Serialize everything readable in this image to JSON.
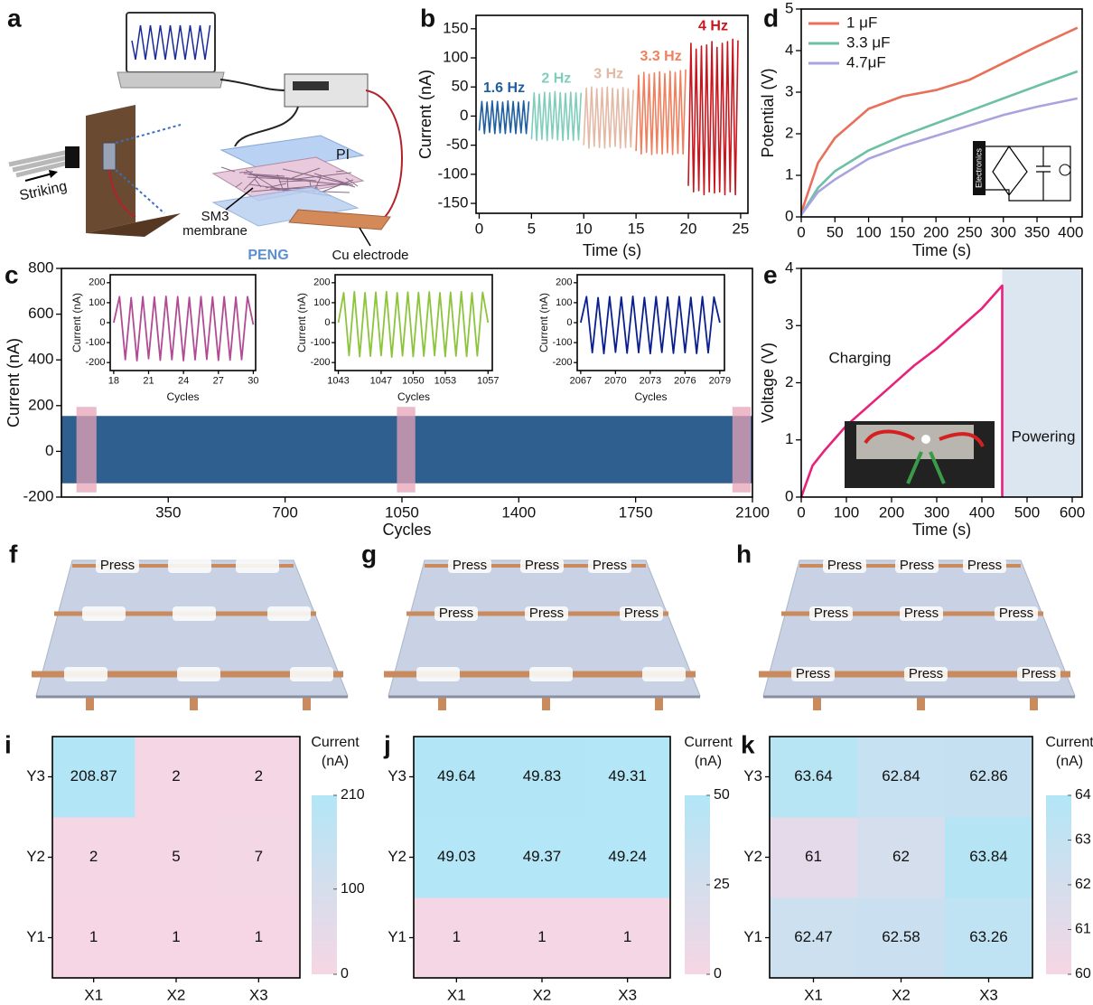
{
  "schematic": {
    "panel": "a",
    "striking": "Striking",
    "pi": "PI",
    "membrane": [
      "SM3",
      "membrane"
    ],
    "peng": "PENG",
    "electrode": "Cu electrode"
  },
  "chart_data": [
    {
      "panel": "b",
      "type": "line",
      "xlabel": "Time (s)",
      "ylabel": "Current (nA)",
      "xlim": [
        -0.3,
        25.7
      ],
      "ylim": [
        -167,
        173
      ],
      "xticks": [
        0,
        5,
        10,
        15,
        20,
        25
      ],
      "yticks": [
        -150,
        -100,
        -50,
        0,
        50,
        100,
        150
      ],
      "legend": "inline",
      "series": [
        {
          "name": "1.6 Hz",
          "color": "#1f5fa0",
          "x": [
            0,
            0.25,
            0.5,
            0.75,
            1,
            1.25,
            1.5,
            1.75,
            2,
            2.25,
            2.5,
            2.75,
            3,
            3.25,
            3.5,
            3.75,
            4,
            4.25,
            4.5,
            4.75
          ],
          "values": [
            -25,
            25,
            -30,
            24,
            -28,
            26,
            -30,
            25,
            -29,
            24,
            -30,
            26,
            -28,
            25,
            -30,
            24,
            -29,
            26,
            -30,
            25
          ]
        },
        {
          "name": "2 Hz",
          "color": "#7fcdbb",
          "x": [
            5,
            5.25,
            5.5,
            5.75,
            6,
            6.25,
            6.5,
            6.75,
            7,
            7.25,
            7.5,
            7.75,
            8,
            8.25,
            8.5,
            8.75,
            9,
            9.25,
            9.5,
            9.75
          ],
          "values": [
            -40,
            40,
            -42,
            38,
            -40,
            41,
            -42,
            40,
            -39,
            42,
            -41,
            40,
            -42,
            39,
            -40,
            41,
            -42,
            40,
            -41,
            40
          ]
        },
        {
          "name": "3 Hz",
          "color": "#e3b9a6",
          "x": [
            10,
            10.25,
            10.5,
            10.75,
            11,
            11.25,
            11.5,
            11.75,
            12,
            12.25,
            12.5,
            12.75,
            13,
            13.25,
            13.5,
            13.75,
            14,
            14.25,
            14.5,
            14.75
          ],
          "values": [
            -50,
            48,
            -55,
            50,
            -52,
            47,
            -54,
            49,
            -55,
            50,
            -53,
            48,
            -52,
            46,
            -55,
            49,
            -54,
            47,
            -53,
            45
          ]
        },
        {
          "name": "3.3 Hz",
          "color": "#f07f5e",
          "x": [
            15,
            15.25,
            15.5,
            15.75,
            16,
            16.25,
            16.5,
            16.75,
            17,
            17.25,
            17.5,
            17.75,
            18,
            18.25,
            18.5,
            18.75,
            19,
            19.25,
            19.5,
            19.75
          ],
          "values": [
            -60,
            70,
            -65,
            75,
            -62,
            72,
            -66,
            74,
            -64,
            76,
            -65,
            73,
            -63,
            77,
            -66,
            75,
            -64,
            78,
            -65,
            80
          ]
        },
        {
          "name": "4 Hz",
          "color": "#c8161e",
          "x": [
            20,
            20.25,
            20.5,
            20.75,
            21,
            21.25,
            21.5,
            21.75,
            22,
            22.25,
            22.5,
            22.75,
            23,
            23.25,
            23.5,
            23.75,
            24,
            24.25,
            24.5,
            24.75
          ],
          "values": [
            -120,
            125,
            -130,
            115,
            -128,
            120,
            -135,
            122,
            -130,
            128,
            -132,
            118,
            -130,
            125,
            -135,
            128,
            -130,
            132,
            -135,
            130
          ]
        }
      ]
    },
    {
      "panel": "d",
      "type": "line",
      "xlabel": "Time (s)",
      "ylabel": "Potential (V)",
      "xlim": [
        0,
        417
      ],
      "ylim": [
        0,
        5
      ],
      "xticks": [
        0,
        50,
        100,
        150,
        200,
        250,
        300,
        350,
        400
      ],
      "yticks": [
        0,
        1,
        2,
        3,
        4,
        5
      ],
      "legend": "upper left",
      "inset_label": "Electronics",
      "series": [
        {
          "name": "1 μF",
          "color": "#e8705a",
          "x": [
            0,
            25,
            50,
            100,
            150,
            200,
            250,
            300,
            350,
            410
          ],
          "values": [
            0.1,
            1.3,
            1.9,
            2.6,
            2.9,
            3.05,
            3.3,
            3.7,
            4.1,
            4.55
          ]
        },
        {
          "name": "3.3 μF",
          "color": "#6cc0a4",
          "x": [
            0,
            25,
            50,
            100,
            150,
            200,
            250,
            300,
            350,
            410
          ],
          "values": [
            0.05,
            0.7,
            1.1,
            1.6,
            1.95,
            2.25,
            2.55,
            2.85,
            3.15,
            3.5
          ]
        },
        {
          "name": "4.7μF",
          "color": "#a9a4e0",
          "x": [
            0,
            25,
            50,
            100,
            150,
            200,
            250,
            300,
            350,
            410
          ],
          "values": [
            0.05,
            0.6,
            0.9,
            1.4,
            1.7,
            1.95,
            2.2,
            2.45,
            2.65,
            2.85
          ]
        }
      ]
    },
    {
      "panel": "c",
      "type": "band",
      "xlabel": "Cycles",
      "ylabel": "Current (nA)",
      "xlim": [
        30,
        2100
      ],
      "ylim": [
        -200,
        800
      ],
      "xticks": [
        350,
        700,
        1050,
        1400,
        1750,
        2100
      ],
      "yticks": [
        -200,
        0,
        200,
        400,
        600,
        800
      ],
      "color": "#2e5f8e",
      "x": [
        30,
        2100
      ],
      "upper": [
        155,
        155
      ],
      "lower": [
        -140,
        -140
      ],
      "highlights": [
        [
          75,
          135
        ],
        [
          1035,
          1090
        ],
        [
          2040,
          2095
        ]
      ],
      "highlight_color": "#e7a3b7"
    },
    {
      "type": "line",
      "xlabel": "Cycles",
      "ylabel": "Current (nA)",
      "xlim": [
        17.7,
        30.2
      ],
      "ylim": [
        -240,
        240
      ],
      "xticks": [
        18,
        21,
        24,
        27,
        30
      ],
      "yticks": [
        -200,
        -100,
        0,
        100,
        200
      ],
      "series": [
        {
          "color": "#b04b94",
          "x": [
            18,
            18.5,
            19,
            19.5,
            20,
            20.5,
            21,
            21.5,
            22,
            22.5,
            23,
            23.5,
            24,
            24.5,
            25,
            25.5,
            26,
            26.5,
            27,
            27.5,
            28,
            28.5,
            29,
            29.5,
            30
          ],
          "values": [
            0,
            130,
            -185,
            125,
            -190,
            130,
            -180,
            128,
            -188,
            132,
            -185,
            130,
            -190,
            127,
            -186,
            131,
            -184,
            129,
            -189,
            130,
            -187,
            128,
            -185,
            130,
            -10
          ]
        }
      ]
    },
    {
      "type": "line",
      "xlabel": "Cycles",
      "ylabel": "Current (nA)",
      "xlim": [
        1042.7,
        1057.4
      ],
      "ylim": [
        -240,
        240
      ],
      "xticks": [
        1043,
        1047,
        1050,
        1053,
        1057
      ],
      "yticks": [
        -200,
        -100,
        0,
        100,
        200
      ],
      "series": [
        {
          "color": "#8cc43c",
          "x": [
            1043,
            1043.5,
            1044,
            1044.5,
            1045,
            1045.5,
            1046,
            1046.5,
            1047,
            1047.5,
            1048,
            1048.5,
            1049,
            1049.5,
            1050,
            1050.5,
            1051,
            1051.5,
            1052,
            1052.5,
            1053,
            1053.5,
            1054,
            1054.5,
            1055,
            1055.5,
            1056,
            1056.5,
            1057
          ],
          "values": [
            0,
            150,
            -165,
            155,
            -170,
            150,
            -168,
            152,
            -165,
            155,
            -172,
            150,
            -166,
            153,
            -170,
            151,
            -168,
            154,
            -165,
            150,
            -170,
            152,
            -167,
            155,
            -169,
            150,
            -166,
            152,
            0
          ]
        }
      ]
    },
    {
      "type": "line",
      "xlabel": "Cycles",
      "ylabel": "Current (nA)",
      "xlim": [
        2066.7,
        2079.4
      ],
      "ylim": [
        -240,
        240
      ],
      "xticks": [
        2067,
        2070,
        2073,
        2076,
        2079
      ],
      "yticks": [
        -200,
        -100,
        0,
        100,
        200
      ],
      "series": [
        {
          "color": "#0a1f8f",
          "x": [
            2067,
            2067.5,
            2068,
            2068.5,
            2069,
            2069.5,
            2070,
            2070.5,
            2071,
            2071.5,
            2072,
            2072.5,
            2073,
            2073.5,
            2074,
            2074.5,
            2075,
            2075.5,
            2076,
            2076.5,
            2077,
            2077.5,
            2078,
            2078.5,
            2079
          ],
          "values": [
            0,
            130,
            -150,
            125,
            -155,
            130,
            -148,
            128,
            -152,
            132,
            -150,
            126,
            -155,
            130,
            -149,
            128,
            -153,
            131,
            -150,
            127,
            -154,
            130,
            -151,
            128,
            0
          ]
        }
      ]
    },
    {
      "panel": "e",
      "type": "line",
      "xlabel": "Time (s)",
      "ylabel": "Voltage (V)",
      "xlim": [
        0,
        622
      ],
      "ylim": [
        0,
        4
      ],
      "xticks": [
        0,
        100,
        200,
        300,
        400,
        500,
        600
      ],
      "yticks": [
        0,
        1,
        2,
        3,
        4
      ],
      "shaded_region": [
        445,
        622
      ],
      "shade_color": "#dce6f0",
      "annotations": [
        "Charging",
        "Powering"
      ],
      "series": [
        {
          "color": "#e8217a",
          "x": [
            0,
            25,
            50,
            100,
            150,
            200,
            250,
            300,
            350,
            400,
            445,
            445
          ],
          "values": [
            0,
            0.55,
            0.8,
            1.25,
            1.6,
            1.95,
            2.3,
            2.6,
            2.95,
            3.3,
            3.7,
            0
          ]
        }
      ]
    },
    {
      "panel": "i",
      "type": "heatmap",
      "x_categories": [
        "X1",
        "X2",
        "X3"
      ],
      "y_categories": [
        "Y1",
        "Y2",
        "Y3"
      ],
      "values": [
        [
          1,
          1,
          1
        ],
        [
          2,
          5,
          7
        ],
        [
          208.87,
          2,
          2
        ]
      ],
      "clim": [
        0,
        210
      ],
      "cticks": [
        0,
        100,
        210
      ],
      "colorbar_title": [
        "Current",
        "(nA)"
      ],
      "cmap": [
        "#f6d6e4",
        "#b2e6f6"
      ]
    },
    {
      "panel": "j",
      "type": "heatmap",
      "x_categories": [
        "X1",
        "X2",
        "X3"
      ],
      "y_categories": [
        "Y1",
        "Y2",
        "Y3"
      ],
      "values": [
        [
          1,
          1,
          1
        ],
        [
          49.03,
          49.37,
          49.24
        ],
        [
          49.64,
          49.83,
          49.31
        ]
      ],
      "clim": [
        0,
        50
      ],
      "cticks": [
        0,
        25,
        50
      ],
      "colorbar_title": [
        "Current",
        "(nA)"
      ],
      "cmap": [
        "#f6d6e4",
        "#b2e6f6"
      ]
    },
    {
      "panel": "k",
      "type": "heatmap",
      "x_categories": [
        "X1",
        "X2",
        "X3"
      ],
      "y_categories": [
        "Y1",
        "Y2",
        "Y3"
      ],
      "values": [
        [
          62.47,
          62.58,
          63.26
        ],
        [
          61,
          62,
          63.84
        ],
        [
          63.64,
          62.84,
          62.86
        ]
      ],
      "clim": [
        60,
        64
      ],
      "cticks": [
        60,
        61,
        62,
        63,
        64
      ],
      "colorbar_title": [
        "Current",
        "(nA)"
      ],
      "cmap": [
        "#f6d6e4",
        "#b2e6f6"
      ]
    }
  ],
  "photos": [
    {
      "panel": "f",
      "labels": [
        "Press"
      ]
    },
    {
      "panel": "g",
      "labels": [
        "Press",
        "Press",
        "Press",
        "Press",
        "Press",
        "Press"
      ]
    },
    {
      "panel": "h",
      "labels": [
        "Press",
        "Press",
        "Press",
        "Press",
        "Press",
        "Press",
        "Press",
        "Press",
        "Press"
      ]
    }
  ]
}
